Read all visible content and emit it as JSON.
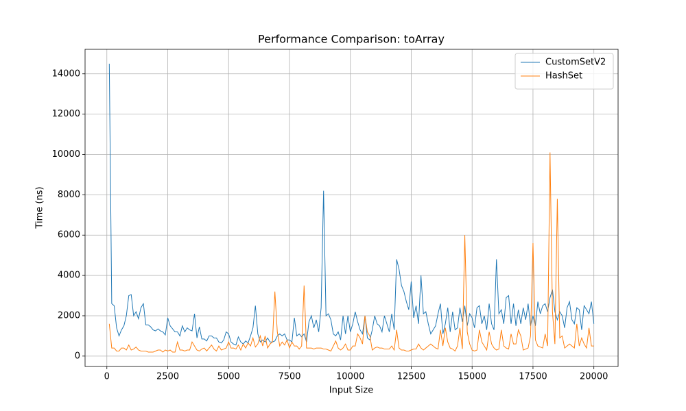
{
  "chart_data": {
    "type": "line",
    "title": "Performance Comparison: toArray",
    "x_label": "Input Size",
    "y_label": "Time (ns)",
    "x": [
      100,
      200,
      300,
      400,
      500,
      600,
      700,
      800,
      900,
      1000,
      1100,
      1200,
      1300,
      1400,
      1500,
      1600,
      1700,
      1800,
      1900,
      2000,
      2100,
      2200,
      2300,
      2400,
      2500,
      2600,
      2700,
      2800,
      2900,
      3000,
      3100,
      3200,
      3300,
      3400,
      3500,
      3600,
      3700,
      3800,
      3900,
      4000,
      4100,
      4200,
      4300,
      4400,
      4500,
      4600,
      4700,
      4800,
      4900,
      5000,
      5100,
      5200,
      5300,
      5400,
      5500,
      5600,
      5700,
      5800,
      5900,
      6000,
      6100,
      6200,
      6300,
      6400,
      6500,
      6600,
      6700,
      6800,
      6900,
      7000,
      7100,
      7200,
      7300,
      7400,
      7500,
      7600,
      7700,
      7800,
      7900,
      8000,
      8100,
      8200,
      8300,
      8400,
      8500,
      8600,
      8700,
      8800,
      8900,
      9000,
      9100,
      9200,
      9300,
      9400,
      9500,
      9600,
      9700,
      9800,
      9900,
      10000,
      10100,
      10200,
      10300,
      10400,
      10500,
      10600,
      10700,
      10800,
      10900,
      11000,
      11100,
      11200,
      11300,
      11400,
      11500,
      11600,
      11700,
      11800,
      11900,
      12000,
      12100,
      12200,
      12300,
      12400,
      12500,
      12600,
      12700,
      12800,
      12900,
      13000,
      13100,
      13200,
      13300,
      13400,
      13500,
      13600,
      13700,
      13800,
      13900,
      14000,
      14100,
      14200,
      14300,
      14400,
      14500,
      14600,
      14700,
      14800,
      14900,
      15000,
      15100,
      15200,
      15300,
      15400,
      15500,
      15600,
      15700,
      15800,
      15900,
      16000,
      16100,
      16200,
      16300,
      16400,
      16500,
      16600,
      16700,
      16800,
      16900,
      17000,
      17100,
      17200,
      17300,
      17400,
      17500,
      17600,
      17700,
      17800,
      17900,
      18000,
      18100,
      18200,
      18300,
      18400,
      18500,
      18600,
      18700,
      18800,
      18900,
      19000,
      19100,
      19200,
      19300,
      19400,
      19500,
      19600,
      19700,
      19800,
      19900,
      20000
    ],
    "series": [
      {
        "name": "CustomSetV2",
        "color": "#1f77b4",
        "values": [
          14500,
          2600,
          2500,
          1400,
          1000,
          1300,
          1500,
          2000,
          3000,
          3050,
          2000,
          2200,
          1850,
          2400,
          2600,
          1550,
          1550,
          1450,
          1300,
          1250,
          1350,
          1250,
          1200,
          1050,
          1900,
          1500,
          1350,
          1200,
          1200,
          1000,
          1500,
          1200,
          1400,
          1300,
          1250,
          2100,
          900,
          1450,
          850,
          850,
          750,
          1000,
          1000,
          900,
          900,
          700,
          650,
          800,
          1200,
          1100,
          700,
          600,
          550,
          950,
          700,
          600,
          750,
          650,
          1000,
          1400,
          2500,
          1100,
          700,
          800,
          700,
          900,
          700,
          700,
          750,
          1000,
          1100,
          1000,
          1100,
          800,
          800,
          700,
          1900,
          1000,
          1100,
          950,
          1100,
          700,
          1700,
          2000,
          1400,
          1800,
          1200,
          2400,
          8200,
          2000,
          2100,
          1800,
          1100,
          1000,
          1200,
          800,
          2000,
          1100,
          2000,
          1200,
          1600,
          2200,
          1700,
          1300,
          1100,
          2000,
          900,
          800,
          1300,
          2000,
          1600,
          1500,
          1200,
          2000,
          1600,
          1200,
          2100,
          1300,
          4800,
          4300,
          3500,
          3200,
          2700,
          2300,
          3700,
          1900,
          2500,
          1600,
          4000,
          2100,
          2200,
          1600,
          1100,
          1300,
          1500,
          2100,
          2600,
          1100,
          1600,
          2400,
          1200,
          2200,
          1300,
          1400,
          2400,
          1700,
          2500,
          1500,
          2100,
          1900,
          1400,
          2400,
          2500,
          1600,
          2000,
          1300,
          2600,
          1600,
          1300,
          4800,
          2100,
          2300,
          1600,
          2900,
          3000,
          1600,
          2600,
          1500,
          2300,
          1600,
          2400,
          1800,
          2600,
          1500,
          2000,
          1500,
          2700,
          2100,
          2500,
          2600,
          2200,
          2900,
          3300,
          2200,
          1800,
          2200,
          2000,
          1400,
          2400,
          2700,
          1800,
          1600,
          2400,
          2300,
          1300,
          2500,
          2300,
          2100,
          2700,
          1600
        ]
      },
      {
        "name": "HashSet",
        "color": "#ff7f0e",
        "values": [
          1600,
          400,
          400,
          250,
          250,
          400,
          400,
          300,
          550,
          300,
          350,
          450,
          300,
          250,
          250,
          250,
          200,
          200,
          200,
          250,
          300,
          300,
          200,
          300,
          250,
          300,
          200,
          200,
          700,
          300,
          300,
          250,
          300,
          300,
          700,
          500,
          300,
          250,
          350,
          400,
          250,
          400,
          550,
          350,
          250,
          500,
          300,
          350,
          400,
          700,
          400,
          400,
          350,
          550,
          300,
          600,
          400,
          650,
          500,
          900,
          450,
          600,
          1000,
          500,
          1000,
          400,
          600,
          700,
          3200,
          1200,
          500,
          700,
          550,
          800,
          400,
          700,
          500,
          500,
          350,
          500,
          3500,
          400,
          400,
          400,
          350,
          400,
          400,
          400,
          350,
          350,
          300,
          250,
          500,
          750,
          400,
          300,
          400,
          600,
          300,
          300,
          500,
          500,
          1100,
          900,
          600,
          2000,
          1200,
          1000,
          300,
          400,
          450,
          400,
          400,
          350,
          350,
          350,
          500,
          300,
          1300,
          400,
          300,
          300,
          250,
          250,
          300,
          350,
          350,
          600,
          400,
          300,
          400,
          500,
          600,
          500,
          400,
          350,
          1300,
          500,
          1400,
          700,
          400,
          350,
          250,
          500,
          1400,
          350,
          6000,
          1200,
          600,
          300,
          250,
          300,
          1300,
          700,
          500,
          300,
          1200,
          600,
          400,
          300,
          350,
          1300,
          500,
          400,
          350,
          1100,
          600,
          600,
          1300,
          1000,
          300,
          350,
          400,
          1000,
          5600,
          800,
          500,
          450,
          400,
          1100,
          500,
          10100,
          2200,
          600,
          7800,
          900,
          1000,
          400,
          500,
          600,
          500,
          400,
          1600,
          500,
          900,
          600,
          400,
          1400,
          500,
          500
        ]
      }
    ],
    "xlim": [
      -895,
      20995
    ],
    "ylim": [
      -515,
      15215
    ],
    "xticks": [
      0,
      2500,
      5000,
      7500,
      10000,
      12500,
      15000,
      17500,
      20000
    ],
    "yticks": [
      0,
      2000,
      4000,
      6000,
      8000,
      10000,
      12000,
      14000
    ],
    "grid": true,
    "legend": "upper right"
  }
}
